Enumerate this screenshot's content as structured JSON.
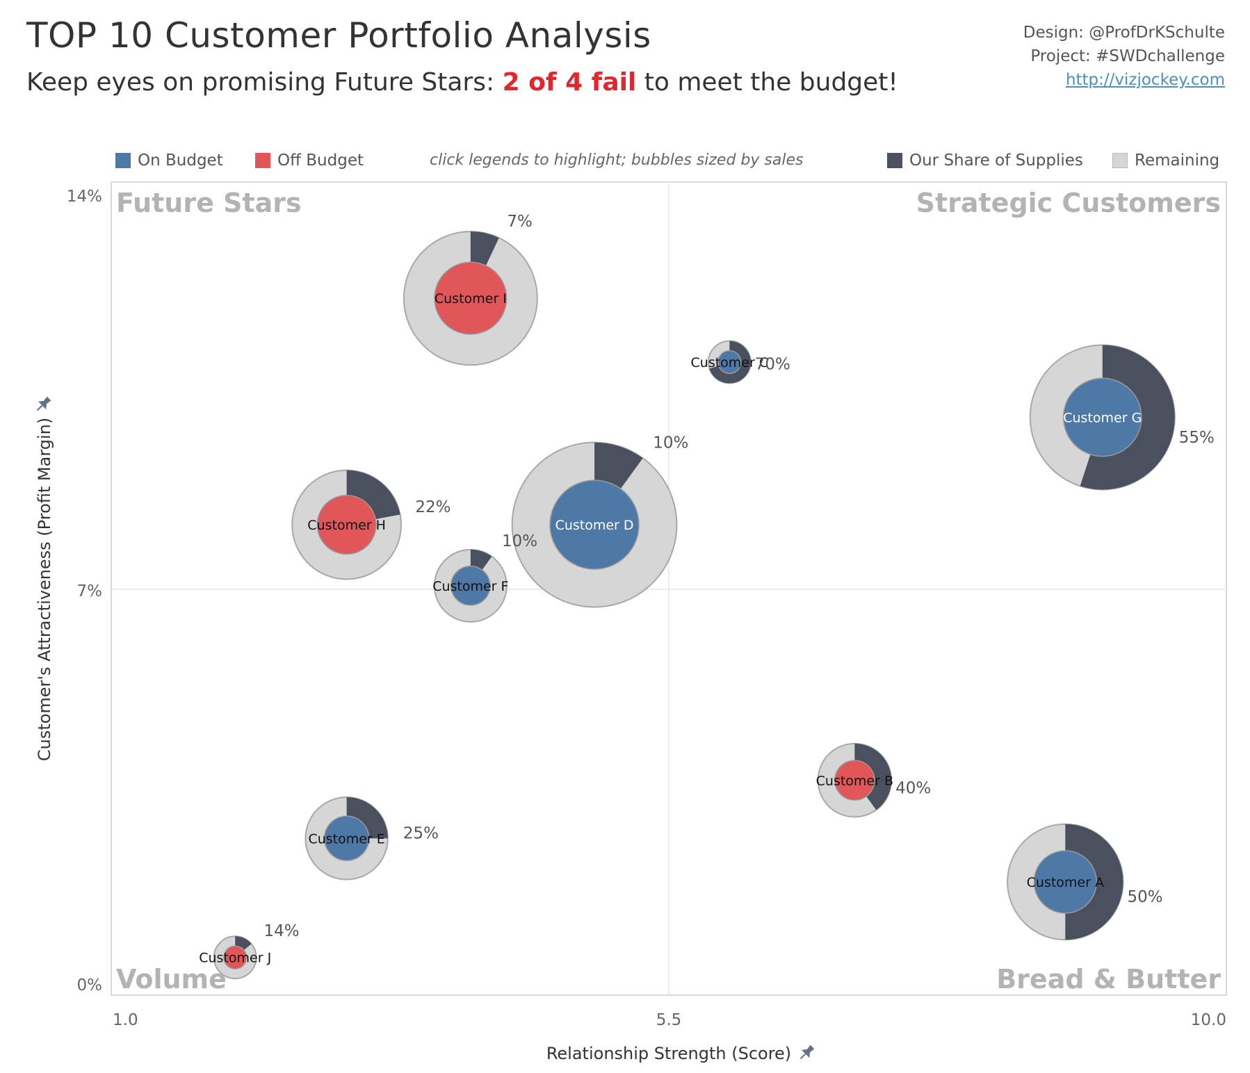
{
  "header": {
    "title": "TOP 10 Customer Portfolio Analysis",
    "subtitle_pre": "Keep eyes on promising Future Stars: ",
    "subtitle_highlight": "2 of 4 fail",
    "subtitle_post": " to meet the budget!"
  },
  "credits": {
    "design": "Design: @ProfDrKSchulte",
    "project": "Project: #SWDchallenge",
    "link": "http://vizjockey.com"
  },
  "legend": {
    "on_budget": "On Budget",
    "off_budget": "Off Budget",
    "hint": "click legends to highlight; bubbles sized by sales",
    "our_share": "Our Share of Supplies",
    "remaining": "Remaining"
  },
  "colors": {
    "on_budget": "#4e79a7",
    "off_budget": "#e15759",
    "our_share": "#4b505e",
    "remaining": "#d6d6d6",
    "quadrant_label": "#b3b3b3"
  },
  "chart_data": {
    "type": "scatter",
    "xlabel": "Relationship Strength (Score)",
    "ylabel": "Customer's Attractiveness (Profit Margin)",
    "xlim": [
      1.0,
      10.0
    ],
    "ylim": [
      0,
      14
    ],
    "x_ticks": [
      "1.0",
      "5.5",
      "10.0"
    ],
    "y_ticks": [
      "14%",
      "7%",
      "0%"
    ],
    "quadrants": {
      "top_left": "Future Stars",
      "top_right": "Strategic Customers",
      "bottom_left": "Volume",
      "bottom_right": "Bread & Butter"
    },
    "points": [
      {
        "name": "Customer I",
        "x": 3.9,
        "y": 12.0,
        "share": "7%",
        "share_value": 0.07,
        "status": "off",
        "size": 1.2
      },
      {
        "name": "Customer C",
        "x": 5.99,
        "y": 10.9,
        "share": "70%",
        "share_value": 0.7,
        "status": "on",
        "size": 0.38
      },
      {
        "name": "Customer G",
        "x": 9.0,
        "y": 9.95,
        "share": "55%",
        "share_value": 0.55,
        "status": "on",
        "size": 1.3
      },
      {
        "name": "Customer D",
        "x": 4.9,
        "y": 8.1,
        "share": "10%",
        "share_value": 0.1,
        "status": "on",
        "size": 1.48
      },
      {
        "name": "Customer H",
        "x": 2.9,
        "y": 8.1,
        "share": "22%",
        "share_value": 0.22,
        "status": "off",
        "size": 0.98
      },
      {
        "name": "Customer F",
        "x": 3.9,
        "y": 7.05,
        "share": "10%",
        "share_value": 0.1,
        "status": "on",
        "size": 0.65
      },
      {
        "name": "Customer B",
        "x": 7.0,
        "y": 3.7,
        "share": "40%",
        "share_value": 0.4,
        "status": "off",
        "size": 0.66
      },
      {
        "name": "Customer E",
        "x": 2.9,
        "y": 2.7,
        "share": "25%",
        "share_value": 0.25,
        "status": "on",
        "size": 0.74
      },
      {
        "name": "Customer A",
        "x": 8.7,
        "y": 1.95,
        "share": "50%",
        "share_value": 0.5,
        "status": "on",
        "size": 1.04
      },
      {
        "name": "Customer J",
        "x": 2.0,
        "y": 0.65,
        "share": "14%",
        "share_value": 0.14,
        "status": "off",
        "size": 0.38
      }
    ]
  }
}
